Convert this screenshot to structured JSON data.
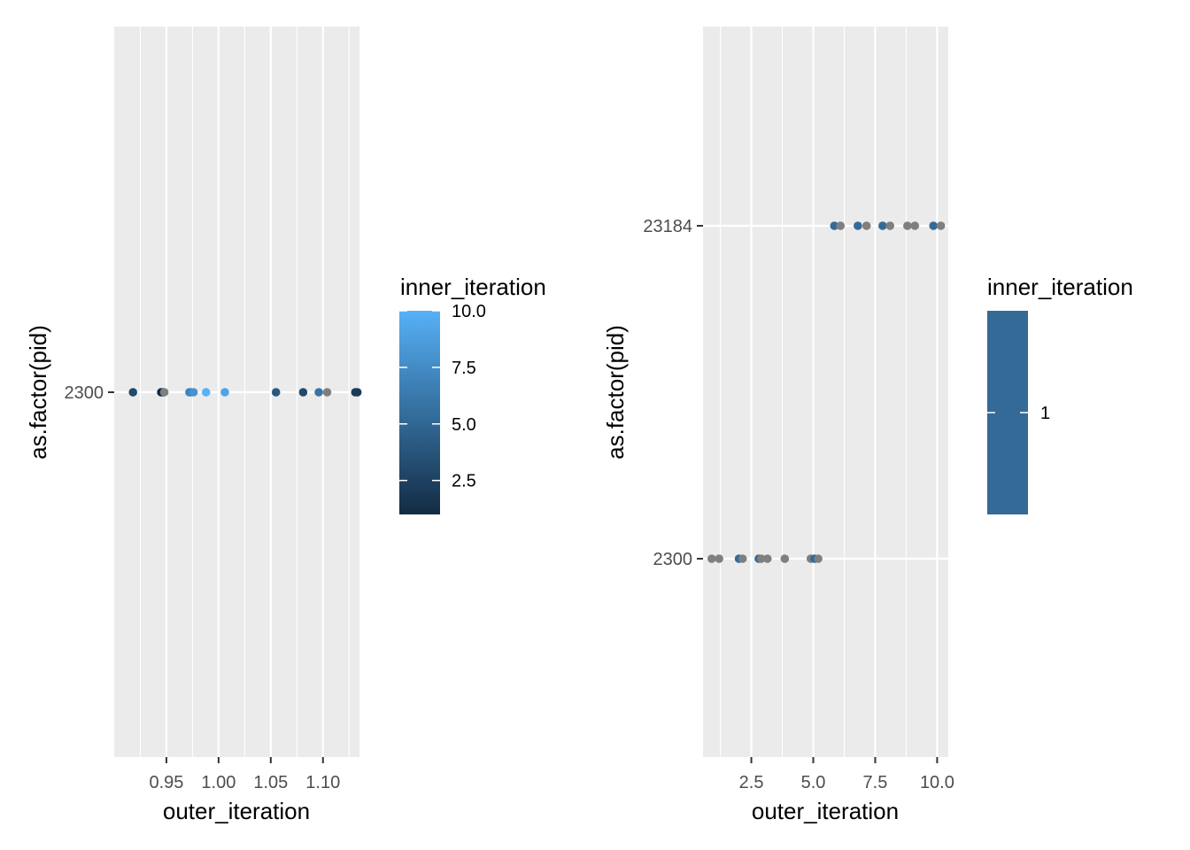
{
  "chart_data": [
    {
      "type": "scatter",
      "xlabel": "outer_iteration",
      "ylabel": "as.factor(pid)",
      "xlim": [
        0.9,
        1.135
      ],
      "x_ticks": [
        0.95,
        1.0,
        1.05,
        1.1
      ],
      "x_tick_labels": [
        "0.95",
        "1.00",
        "1.05",
        "1.10"
      ],
      "y_categories": [
        "2300"
      ],
      "legend": {
        "title": "inner_iteration",
        "type": "gradient",
        "min": 1,
        "max": 10,
        "breaks": [
          2.5,
          5.0,
          7.5,
          10.0
        ],
        "break_labels": [
          "2.5",
          "5.0",
          "7.5",
          "10.0"
        ],
        "low_color": "#132B43",
        "high_color": "#56B1F7"
      },
      "points": [
        {
          "x": 0.918,
          "y": "2300",
          "c": 3
        },
        {
          "x": 0.945,
          "y": "2300",
          "c": 1
        },
        {
          "x": 0.947,
          "y": "2300",
          "c": 1
        },
        {
          "x": 0.948,
          "y": "2300",
          "c": null
        },
        {
          "x": 0.972,
          "y": "2300",
          "c": 7
        },
        {
          "x": 0.974,
          "y": "2300",
          "c": 7
        },
        {
          "x": 0.976,
          "y": "2300",
          "c": 8
        },
        {
          "x": 0.988,
          "y": "2300",
          "c": 10
        },
        {
          "x": 1.006,
          "y": "2300",
          "c": 9
        },
        {
          "x": 1.055,
          "y": "2300",
          "c": 4
        },
        {
          "x": 1.081,
          "y": "2300",
          "c": 3
        },
        {
          "x": 1.096,
          "y": "2300",
          "c": 6
        },
        {
          "x": 1.104,
          "y": "2300",
          "c": null
        },
        {
          "x": 1.131,
          "y": "2300",
          "c": 2
        },
        {
          "x": 1.133,
          "y": "2300",
          "c": 2
        }
      ]
    },
    {
      "type": "scatter",
      "xlabel": "outer_iteration",
      "ylabel": "as.factor(pid)",
      "xlim": [
        0.55,
        10.45
      ],
      "x_ticks": [
        2.5,
        5.0,
        7.5,
        10.0
      ],
      "x_tick_labels": [
        "2.5",
        "5.0",
        "7.5",
        "10.0"
      ],
      "y_categories": [
        "2300",
        "23184"
      ],
      "legend": {
        "title": "inner_iteration",
        "type": "gradient-single",
        "breaks": [
          1
        ],
        "break_labels": [
          "1"
        ],
        "color": "#336A98"
      },
      "points": [
        {
          "x": 0.9,
          "y": "2300",
          "c": null
        },
        {
          "x": 1.2,
          "y": "2300",
          "c": null
        },
        {
          "x": 2.0,
          "y": "2300",
          "c": 1
        },
        {
          "x": 2.15,
          "y": "2300",
          "c": null
        },
        {
          "x": 2.8,
          "y": "2300",
          "c": 1
        },
        {
          "x": 2.9,
          "y": "2300",
          "c": null
        },
        {
          "x": 3.15,
          "y": "2300",
          "c": null
        },
        {
          "x": 3.85,
          "y": "2300",
          "c": null
        },
        {
          "x": 4.9,
          "y": "2300",
          "c": null
        },
        {
          "x": 5.05,
          "y": "2300",
          "c": 1
        },
        {
          "x": 5.2,
          "y": "2300",
          "c": null
        },
        {
          "x": 5.85,
          "y": "23184",
          "c": 1
        },
        {
          "x": 6.1,
          "y": "23184",
          "c": null
        },
        {
          "x": 6.8,
          "y": "23184",
          "c": 1
        },
        {
          "x": 7.15,
          "y": "23184",
          "c": null
        },
        {
          "x": 7.8,
          "y": "23184",
          "c": 1
        },
        {
          "x": 8.1,
          "y": "23184",
          "c": null
        },
        {
          "x": 8.8,
          "y": "23184",
          "c": null
        },
        {
          "x": 9.1,
          "y": "23184",
          "c": null
        },
        {
          "x": 9.85,
          "y": "23184",
          "c": 1
        },
        {
          "x": 10.15,
          "y": "23184",
          "c": null
        }
      ]
    }
  ],
  "na_color": "#7F7F7F",
  "panel_bg": "#EBEBEB",
  "grid_color": "#FFFFFF"
}
